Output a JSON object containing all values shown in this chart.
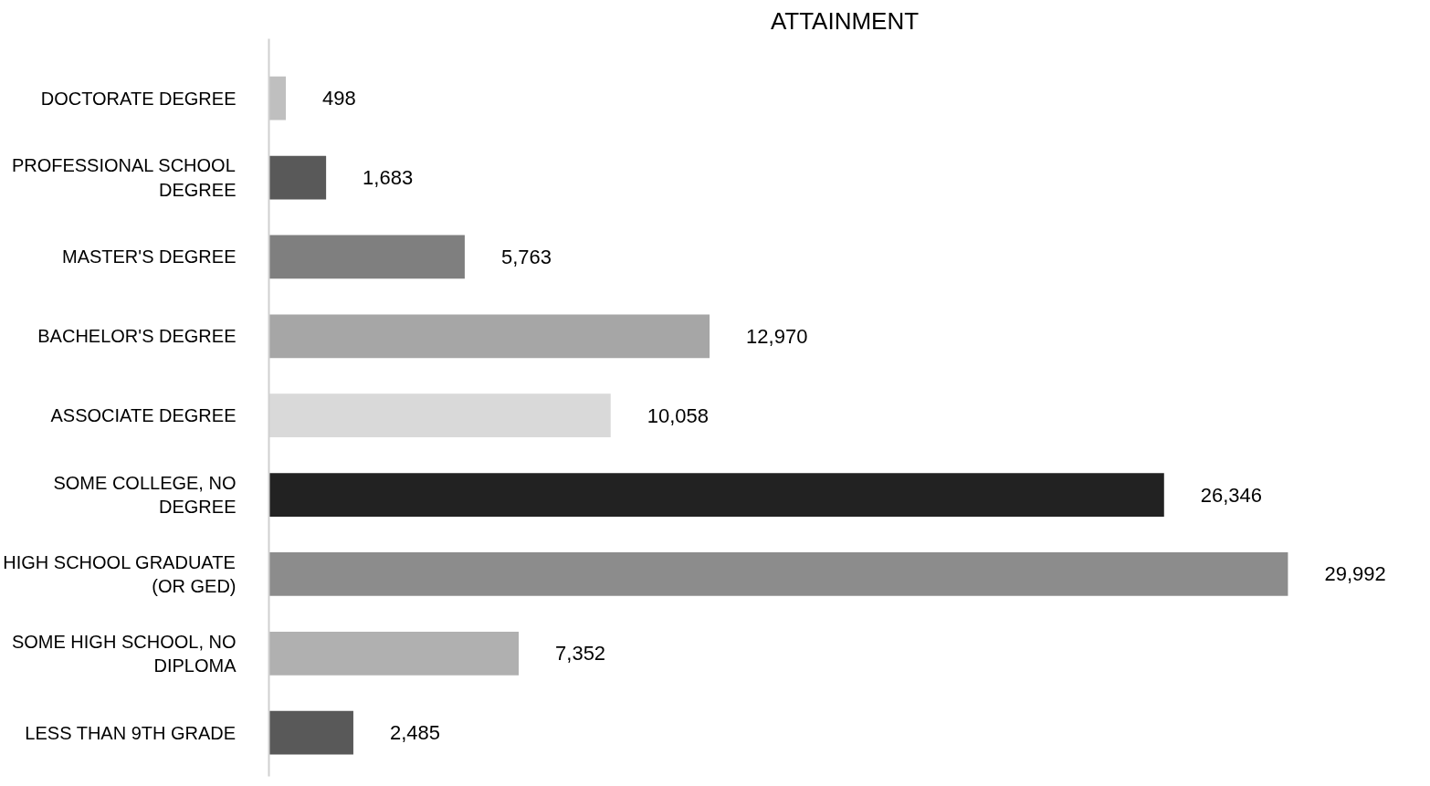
{
  "chart_data": {
    "type": "bar",
    "orientation": "horizontal",
    "title": "ATTAINMENT",
    "categories": [
      "DOCTORATE DEGREE",
      "PROFESSIONAL SCHOOL DEGREE",
      "MASTER'S DEGREE",
      "BACHELOR'S DEGREE",
      "ASSOCIATE DEGREE",
      "SOME COLLEGE, NO DEGREE",
      "HIGH SCHOOL GRADUATE (OR GED)",
      "SOME HIGH SCHOOL, NO DIPLOMA",
      "LESS THAN 9TH GRADE"
    ],
    "values": [
      498,
      1683,
      5763,
      12970,
      10058,
      26346,
      29992,
      7352,
      2485
    ],
    "colors": [
      "#bfbfbf",
      "#595959",
      "#7f7f7f",
      "#a6a6a6",
      "#d9d9d9",
      "#222222",
      "#8c8c8c",
      "#b0b0b0",
      "#595959"
    ],
    "value_labels": [
      "498",
      "1,683",
      "5,763",
      "12,970",
      "10,058",
      "26,346",
      "29,992",
      "7,352",
      "2,485"
    ],
    "grid": false
  }
}
